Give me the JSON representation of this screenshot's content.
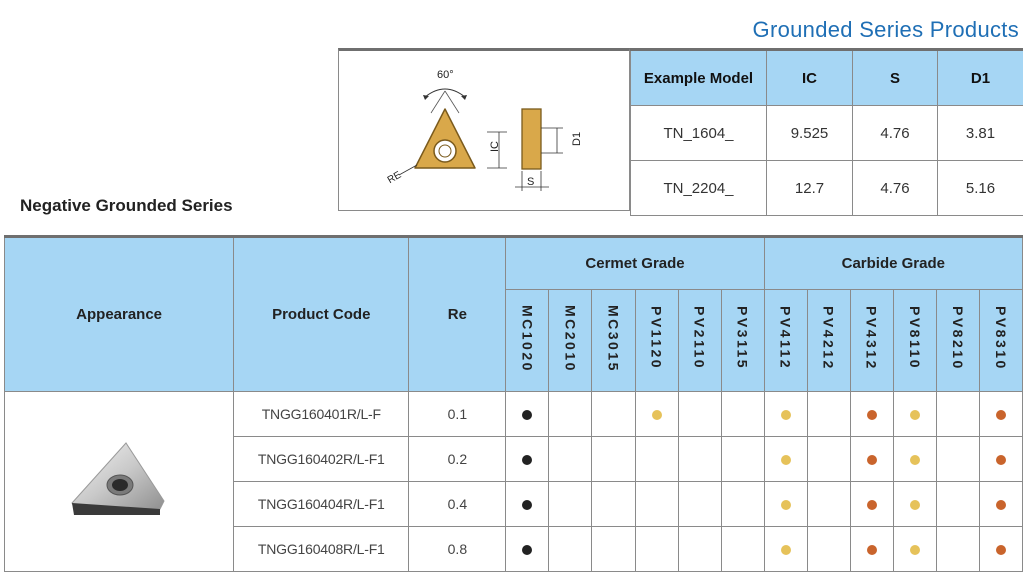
{
  "header": {
    "title": "Grounded Series Products"
  },
  "diagram": {
    "angle": "60°",
    "ic": "IC",
    "re": "RE",
    "d1": "D1",
    "s": "S"
  },
  "example_table": {
    "headers": [
      "Example Model",
      "IC",
      "S",
      "D1"
    ],
    "rows": [
      [
        "TN_1604_",
        "9.525",
        "4.76",
        "3.81"
      ],
      [
        "TN_2204_",
        "12.7",
        "4.76",
        "5.16"
      ]
    ]
  },
  "section_title": "Negative Grounded Series",
  "main_table": {
    "headers": {
      "appearance": "Appearance",
      "product_code": "Product Code",
      "re": "Re"
    },
    "groups": [
      "Cermet Grade",
      "Carbide Grade"
    ],
    "grades": [
      "MC1020",
      "MC2010",
      "MC3015",
      "PV1120",
      "PV2110",
      "PV3115",
      "PV4112",
      "PV4212",
      "PV4312",
      "PV8110",
      "PV8210",
      "PV8310"
    ],
    "rows": [
      {
        "code": "TNGG160401R/L-F",
        "re": "0.1",
        "marks": [
          "black",
          "",
          "",
          "gold",
          "",
          "",
          "gold",
          "",
          "copper",
          "gold",
          "",
          "copper"
        ]
      },
      {
        "code": "TNGG160402R/L-F1",
        "re": "0.2",
        "marks": [
          "black",
          "",
          "",
          "",
          "",
          "",
          "gold",
          "",
          "copper",
          "gold",
          "",
          "copper"
        ]
      },
      {
        "code": "TNGG160404R/L-F1",
        "re": "0.4",
        "marks": [
          "black",
          "",
          "",
          "",
          "",
          "",
          "gold",
          "",
          "copper",
          "gold",
          "",
          "copper"
        ]
      },
      {
        "code": "TNGG160408R/L-F1",
        "re": "0.8",
        "marks": [
          "black",
          "",
          "",
          "",
          "",
          "",
          "gold",
          "",
          "copper",
          "gold",
          "",
          "copper"
        ]
      }
    ]
  },
  "colors": {
    "header_fill": "#a6d6f4",
    "title_blue": "#1f6fb5",
    "insert_gold": "#d9a84a",
    "dot_black": "#222222",
    "dot_gold": "#e6c25a",
    "dot_copper": "#c9642c"
  }
}
